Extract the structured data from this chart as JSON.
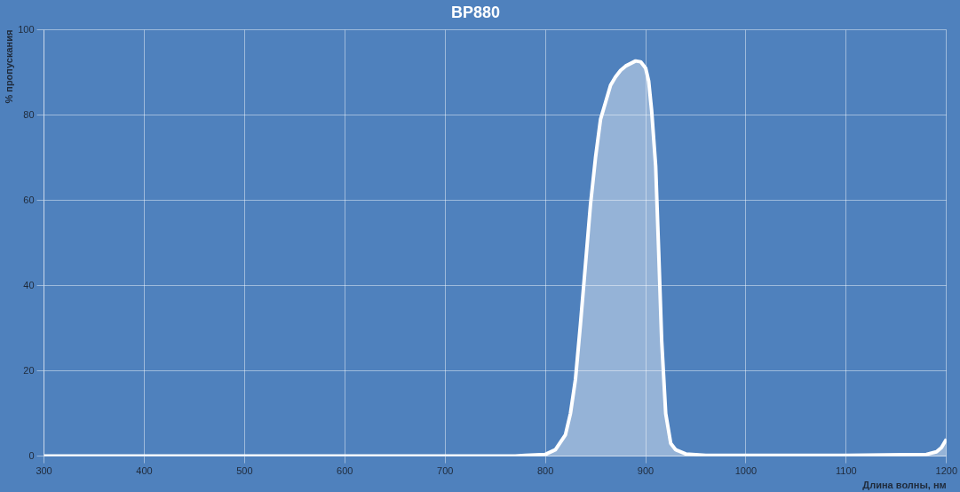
{
  "chart_data": {
    "type": "area",
    "title": "BP880",
    "xlabel": "Длина волны, нм",
    "ylabel": "% пропускания",
    "xlim": [
      300,
      1200
    ],
    "xticks": [
      300,
      400,
      500,
      600,
      700,
      800,
      900,
      1000,
      1100,
      1200
    ],
    "ylim": [
      0,
      100
    ],
    "yticks": [
      0,
      20,
      40,
      60,
      80,
      100
    ],
    "grid": true,
    "marker": "none",
    "line_style": "solid",
    "series": [
      {
        "color": "#ffffff",
        "x": [
          300,
          400,
          500,
          600,
          700,
          770,
          780,
          800,
          810,
          820,
          825,
          830,
          835,
          840,
          845,
          850,
          855,
          860,
          865,
          870,
          875,
          880,
          890,
          895,
          900,
          903,
          906,
          910,
          913,
          916,
          920,
          925,
          930,
          940,
          960,
          1000,
          1100,
          1180,
          1190,
          1195,
          1200
        ],
        "values": [
          0,
          0,
          0,
          0,
          0,
          0,
          0.2,
          0.4,
          1.5,
          5,
          10,
          18,
          31,
          45,
          59,
          70,
          79,
          83,
          87,
          89,
          90.5,
          91.5,
          92.7,
          92.5,
          91,
          88,
          81,
          68,
          48,
          27,
          10,
          3,
          1.5,
          0.5,
          0.2,
          0.2,
          0.2,
          0.4,
          1,
          2,
          4
        ]
      }
    ]
  }
}
